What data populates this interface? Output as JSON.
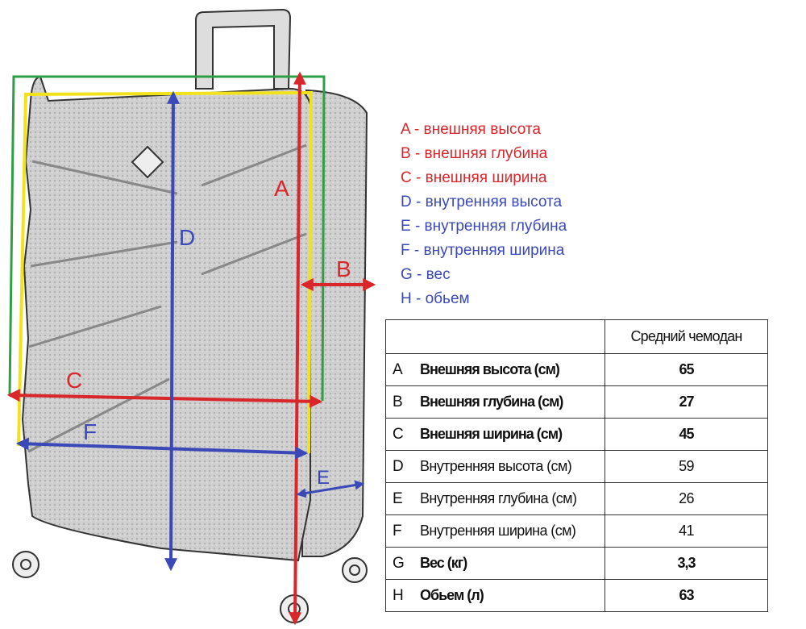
{
  "colors": {
    "outer": "#d9262b",
    "inner": "#3a48b8",
    "green": "#2ea043",
    "yellow": "#f2e21b"
  },
  "diagram_labels": {
    "A": "A",
    "B": "B",
    "C": "C",
    "D": "D",
    "E": "E",
    "F": "F"
  },
  "legend": [
    {
      "text": "A - внешняя высота",
      "color": "#d9262b"
    },
    {
      "text": "B - внешняя глубина",
      "color": "#d9262b"
    },
    {
      "text": "C - внешняя ширина",
      "color": "#d9262b"
    },
    {
      "text": "D - внутренняя высота",
      "color": "#3a48b8"
    },
    {
      "text": "E - внутренняя глубина",
      "color": "#3a48b8"
    },
    {
      "text": "F - внутренняя ширина",
      "color": "#3a48b8"
    },
    {
      "text": "G - вес",
      "color": "#3a48b8"
    },
    {
      "text": "H - обьем",
      "color": "#3a48b8"
    }
  ],
  "table": {
    "header": "Средний чемодан",
    "rows": [
      {
        "letter": "A",
        "label": "Внешняя высота (см)",
        "value": "65"
      },
      {
        "letter": "B",
        "label": "Внешняя глубина (см)",
        "value": "27"
      },
      {
        "letter": "C",
        "label": "Внешняя ширина (см)",
        "value": "45"
      },
      {
        "letter": "D",
        "label": "Внутренняя высота (см)",
        "value": "59"
      },
      {
        "letter": "E",
        "label": "Внутренняя глубина (см)",
        "value": "26"
      },
      {
        "letter": "F",
        "label": "Внутренняя ширина (см)",
        "value": "41"
      },
      {
        "letter": "G",
        "label": "Вес (кг)",
        "value": "3,3"
      },
      {
        "letter": "H",
        "label": "Обьем (л)",
        "value": "63"
      }
    ]
  }
}
